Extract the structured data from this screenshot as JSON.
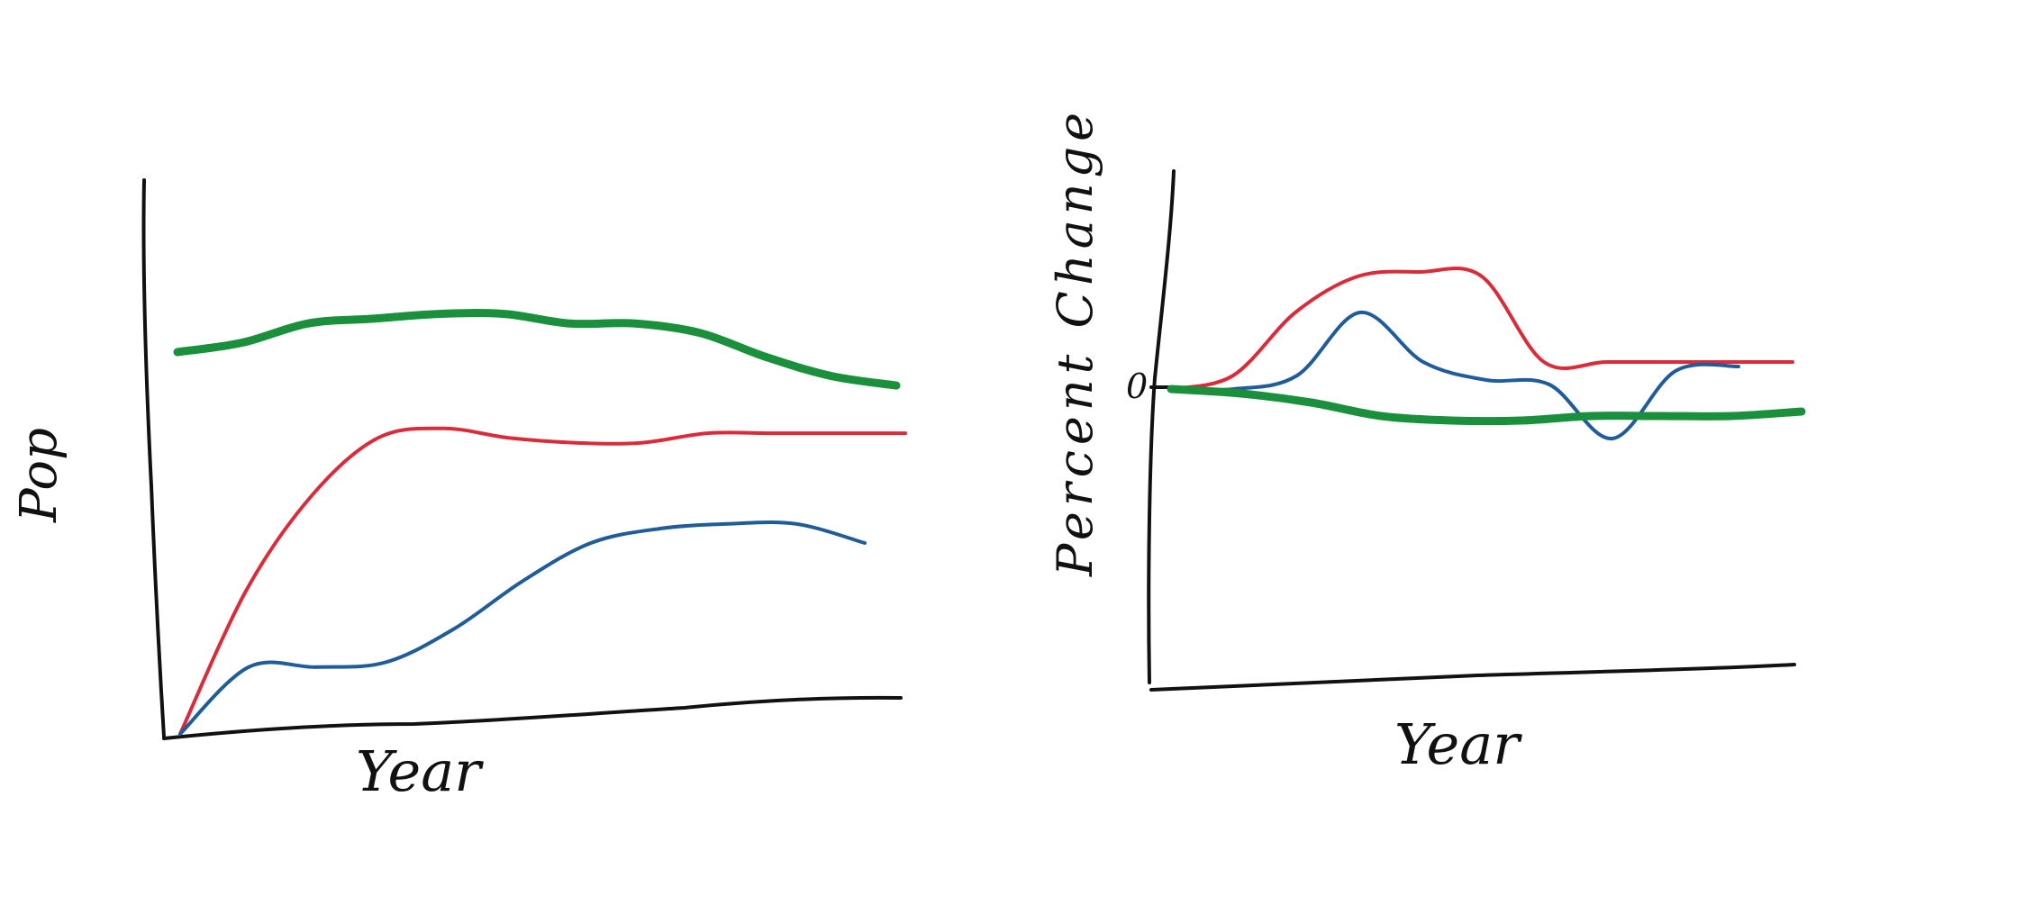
{
  "charts": [
    {
      "id": "left-chart",
      "type": "line",
      "xlabel": "Year",
      "ylabel": "Pop",
      "series": [
        {
          "color": "#1a8f3c",
          "weight": "thick",
          "values": [
            0.8,
            0.82,
            0.86,
            0.87,
            0.88,
            0.88,
            0.86,
            0.86,
            0.84,
            0.79,
            0.75,
            0.73
          ]
        },
        {
          "color": "#d92b3a",
          "weight": "thin",
          "values": [
            0.0,
            0.3,
            0.5,
            0.62,
            0.64,
            0.62,
            0.61,
            0.61,
            0.63,
            0.63,
            0.63,
            0.63
          ]
        },
        {
          "color": "#1f5c99",
          "weight": "thin",
          "values": [
            0.0,
            0.14,
            0.14,
            0.15,
            0.22,
            0.32,
            0.4,
            0.43,
            0.44,
            0.44,
            0.4
          ]
        }
      ]
    },
    {
      "id": "right-chart",
      "type": "line",
      "xlabel": "Year",
      "ylabel": "Percent Change",
      "zero_label": "0",
      "series": [
        {
          "color": "#d92b3a",
          "weight": "thin",
          "values": [
            0.0,
            0.3,
            1.7,
            2.5,
            2.6,
            2.5,
            0.6,
            0.6,
            0.6,
            0.6,
            0.6
          ]
        },
        {
          "color": "#1f5c99",
          "weight": "thin",
          "values": [
            0.0,
            0.0,
            0.3,
            1.7,
            0.6,
            0.2,
            0.1,
            -1.1,
            0.4,
            0.5
          ]
        },
        {
          "color": "#1a8f3c",
          "weight": "thick",
          "values": [
            0.0,
            -0.1,
            -0.3,
            -0.6,
            -0.7,
            -0.7,
            -0.6,
            -0.6,
            -0.6,
            -0.5
          ]
        }
      ]
    }
  ]
}
